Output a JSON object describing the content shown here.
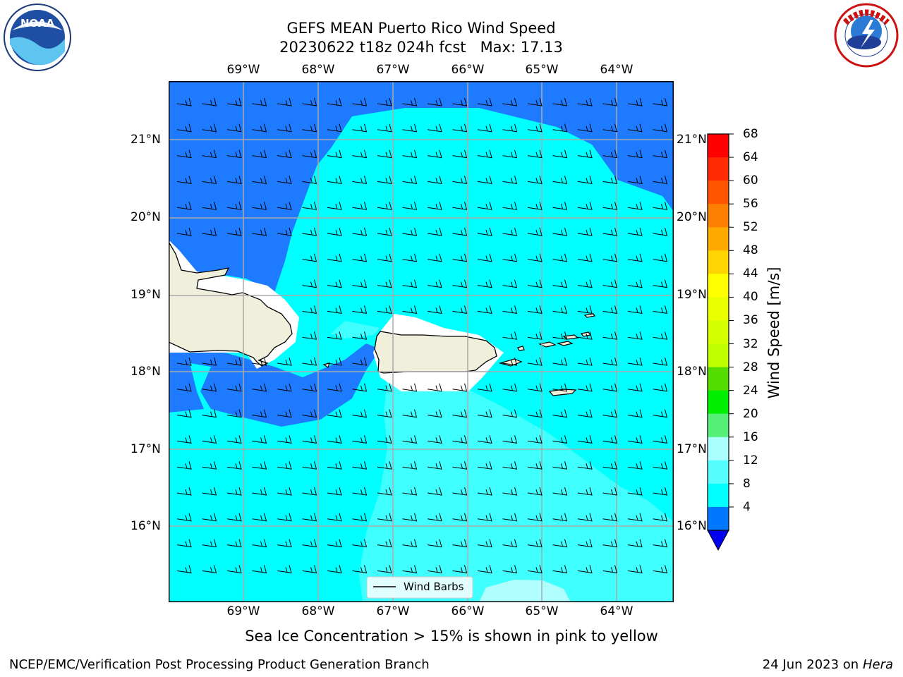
{
  "header": {
    "title_line1": "GEFS MEAN Puerto Rico Wind Speed",
    "title_line2": "20230622 t18z 024h fcst   Max: 17.13"
  },
  "map": {
    "lon_labels_top": [
      "69°W",
      "68°W",
      "67°W",
      "66°W",
      "65°W",
      "64°W"
    ],
    "lon_labels_bottom": [
      "69°W",
      "68°W",
      "67°W",
      "66°W",
      "65°W",
      "64°W"
    ],
    "lat_labels_left": [
      "21°N",
      "20°N",
      "19°N",
      "18°N",
      "17°N",
      "16°N"
    ],
    "lat_labels_right": [
      "21°N",
      "20°N",
      "19°N",
      "18°N",
      "17°N",
      "16°N"
    ],
    "legend_label": "Wind Barbs",
    "fill_colors": {
      "4-8": "#1e7bff",
      "8-12": "#00ffff",
      "12-16": "#40ffff",
      "16-20": "#b0ffff",
      "land": "#efefdc"
    }
  },
  "colorbar": {
    "label": "Wind Speed [m/s]",
    "ticks": [
      "68",
      "64",
      "60",
      "56",
      "52",
      "48",
      "44",
      "40",
      "36",
      "32",
      "28",
      "24",
      "20",
      "16",
      "12",
      "8",
      "4"
    ],
    "colors": [
      "#ff0000",
      "#ff2a00",
      "#ff5500",
      "#ff8000",
      "#ffaa00",
      "#ffd400",
      "#ffff00",
      "#eaff00",
      "#d4ff00",
      "#bfff00",
      "#55dd00",
      "#00ee00",
      "#55ee77",
      "#aaffff",
      "#55ffff",
      "#00ffff",
      "#0077ff"
    ],
    "under_color": "#0000ee"
  },
  "footer": {
    "footnote": "Sea Ice Concentration > 15% is shown in pink to yellow",
    "credit_left": "NCEP/EMC/Verification Post Processing Product Generation Branch",
    "credit_date": "24 Jun 2023 on",
    "credit_host": "Hera"
  },
  "logos": {
    "left": "NOAA",
    "right": "NATIONAL WEATHER SERVICE"
  }
}
